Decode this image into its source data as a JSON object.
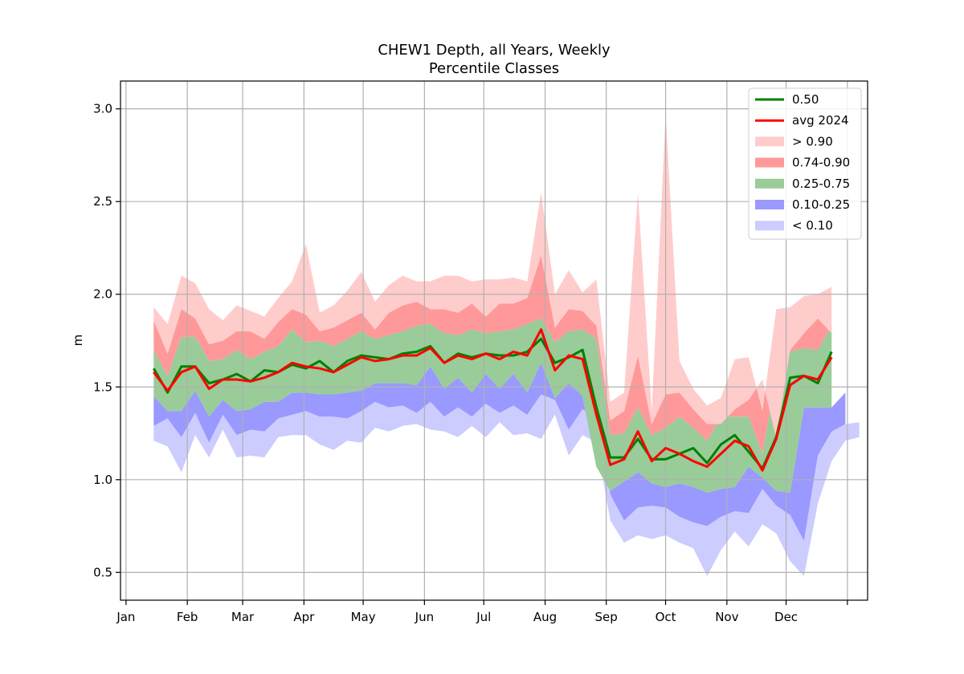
{
  "chart_data": {
    "type": "area",
    "title": "CHEW1 Depth, all Years, Weekly",
    "subtitle": "Percentile Classes",
    "xlabel": "",
    "ylabel": "m",
    "ylim": [
      0.35,
      3.15
    ],
    "yticks": [
      0.5,
      1.0,
      1.5,
      2.0,
      2.5,
      3.0
    ],
    "ytick_labels": [
      "0.5",
      "1.0",
      "1.5",
      "2.0",
      "2.5",
      "3.0"
    ],
    "xlim_weeks": [
      -1.4,
      52.6
    ],
    "xticks_week": [
      -1.0,
      3.43,
      7.43,
      11.86,
      16.14,
      20.57,
      24.86,
      29.29,
      33.71,
      38.0,
      42.43,
      46.71,
      51.14
    ],
    "xtick_labels": [
      "Jan",
      "Feb",
      "Mar",
      "Apr",
      "May",
      "Jun",
      "Jul",
      "Aug",
      "Sep",
      "Oct",
      "Nov",
      "Dec",
      ""
    ],
    "grid": true,
    "legend_position": "top-right",
    "legend": [
      {
        "label": "0.50",
        "kind": "line",
        "color": "#008000"
      },
      {
        "label": "avg 2024",
        "kind": "line",
        "color": "#ff0000"
      },
      {
        "label": "> 0.90",
        "kind": "patch",
        "color": "#ffcccc"
      },
      {
        "label": "0.74-0.90",
        "kind": "patch",
        "color": "#ff9999"
      },
      {
        "label": "0.25-0.75",
        "kind": "patch",
        "color": "#99cc99"
      },
      {
        "label": "0.10-0.25",
        "kind": "patch",
        "color": "#9999ff"
      },
      {
        "label": "< 0.10",
        "kind": "patch",
        "color": "#ccccff"
      }
    ],
    "x_week": [
      1,
      2,
      3,
      4,
      5,
      6,
      7,
      8,
      9,
      10,
      11,
      12,
      13,
      14,
      15,
      16,
      17,
      18,
      19,
      20,
      21,
      22,
      23,
      24,
      25,
      26,
      27,
      28,
      29,
      30,
      31,
      32,
      33,
      34,
      35,
      36,
      37,
      38,
      39,
      40,
      41,
      42,
      43,
      44,
      45,
      46,
      47,
      48,
      49,
      50,
      51,
      52
    ],
    "series": [
      {
        "name": "< 0.10",
        "color": "#ccccff",
        "kind": "band",
        "lower": [
          1.21,
          1.18,
          1.04,
          1.24,
          1.12,
          1.27,
          1.12,
          1.13,
          1.12,
          1.23,
          1.24,
          1.24,
          1.19,
          1.16,
          1.21,
          1.2,
          1.28,
          1.26,
          1.29,
          1.3,
          1.27,
          1.26,
          1.23,
          1.29,
          1.23,
          1.31,
          1.24,
          1.25,
          1.22,
          1.35,
          1.13,
          1.24,
          1.2,
          0.78,
          0.66,
          0.7,
          0.68,
          0.7,
          0.66,
          0.63,
          0.48,
          0.62,
          0.72,
          0.64,
          0.76,
          0.71,
          0.56,
          0.48,
          0.87,
          1.1,
          1.21,
          1.23
        ],
        "upper": [
          1.29,
          1.33,
          1.23,
          1.36,
          1.2,
          1.35,
          1.24,
          1.27,
          1.26,
          1.33,
          1.35,
          1.37,
          1.34,
          1.34,
          1.33,
          1.37,
          1.42,
          1.39,
          1.4,
          1.36,
          1.42,
          1.34,
          1.39,
          1.34,
          1.41,
          1.36,
          1.4,
          1.35,
          1.46,
          1.43,
          1.27,
          1.38,
          1.33,
          0.92,
          0.78,
          0.85,
          0.86,
          0.85,
          0.8,
          0.77,
          0.75,
          0.8,
          0.83,
          0.82,
          0.95,
          0.86,
          0.81,
          0.67,
          1.13,
          1.26,
          1.3,
          1.31
        ]
      },
      {
        "name": "0.10-0.25",
        "color": "#9999ff",
        "kind": "band",
        "lower": [
          1.29,
          1.33,
          1.23,
          1.36,
          1.2,
          1.35,
          1.24,
          1.27,
          1.26,
          1.33,
          1.35,
          1.37,
          1.34,
          1.34,
          1.33,
          1.37,
          1.42,
          1.39,
          1.4,
          1.36,
          1.42,
          1.34,
          1.39,
          1.34,
          1.41,
          1.36,
          1.4,
          1.35,
          1.46,
          1.43,
          1.27,
          1.38,
          1.33,
          0.92,
          0.78,
          0.85,
          0.86,
          0.85,
          0.8,
          0.77,
          0.75,
          0.8,
          0.83,
          0.82,
          0.95,
          0.86,
          0.81,
          0.67,
          1.13,
          1.26,
          1.3,
          1.31
        ],
        "upper": [
          1.45,
          1.37,
          1.37,
          1.48,
          1.34,
          1.43,
          1.37,
          1.38,
          1.42,
          1.42,
          1.47,
          1.47,
          1.46,
          1.46,
          1.47,
          1.48,
          1.52,
          1.52,
          1.52,
          1.51,
          1.61,
          1.49,
          1.55,
          1.47,
          1.57,
          1.49,
          1.57,
          1.47,
          1.63,
          1.44,
          1.52,
          1.45,
          1.07,
          0.94,
          0.99,
          1.04,
          0.98,
          0.96,
          0.98,
          0.96,
          0.93,
          0.95,
          0.96,
          1.07,
          1.01,
          0.94,
          0.93,
          1.39,
          1.39,
          1.39,
          1.47
        ]
      },
      {
        "name": "0.25-0.75",
        "color": "#99cc99",
        "kind": "band",
        "lower": [
          1.45,
          1.37,
          1.37,
          1.48,
          1.34,
          1.43,
          1.37,
          1.38,
          1.42,
          1.42,
          1.47,
          1.47,
          1.46,
          1.46,
          1.47,
          1.48,
          1.52,
          1.52,
          1.52,
          1.51,
          1.61,
          1.49,
          1.55,
          1.47,
          1.57,
          1.49,
          1.57,
          1.47,
          1.63,
          1.44,
          1.52,
          1.45,
          1.07,
          0.94,
          0.99,
          1.04,
          0.98,
          0.96,
          0.98,
          0.96,
          0.93,
          0.95,
          0.96,
          1.07,
          1.01,
          0.94,
          0.93,
          1.39,
          1.39,
          1.39,
          1.47,
          1.47
        ],
        "upper": [
          1.7,
          1.56,
          1.77,
          1.77,
          1.64,
          1.65,
          1.7,
          1.65,
          1.69,
          1.72,
          1.81,
          1.74,
          1.75,
          1.72,
          1.76,
          1.8,
          1.76,
          1.78,
          1.8,
          1.83,
          1.84,
          1.79,
          1.78,
          1.81,
          1.79,
          1.8,
          1.81,
          1.84,
          1.87,
          1.74,
          1.8,
          1.81,
          1.76,
          1.24,
          1.25,
          1.39,
          1.24,
          1.28,
          1.34,
          1.28,
          1.21,
          1.34,
          1.34,
          1.34,
          1.14,
          1.57,
          1.69,
          1.71,
          1.7,
          1.83
        ]
      },
      {
        "name": "0.74-0.90",
        "color": "#ff9999",
        "kind": "band",
        "lower": [
          1.7,
          1.56,
          1.77,
          1.77,
          1.64,
          1.65,
          1.7,
          1.65,
          1.69,
          1.72,
          1.81,
          1.74,
          1.75,
          1.72,
          1.76,
          1.8,
          1.76,
          1.78,
          1.8,
          1.83,
          1.84,
          1.79,
          1.78,
          1.81,
          1.79,
          1.8,
          1.81,
          1.84,
          1.87,
          1.74,
          1.8,
          1.81,
          1.76,
          1.24,
          1.25,
          1.39,
          1.24,
          1.28,
          1.34,
          1.28,
          1.21,
          1.34,
          1.34,
          1.34,
          1.14,
          1.57,
          1.69,
          1.71,
          1.7,
          1.83
        ],
        "upper": [
          1.86,
          1.68,
          1.92,
          1.87,
          1.73,
          1.75,
          1.8,
          1.8,
          1.76,
          1.85,
          1.92,
          1.89,
          1.8,
          1.82,
          1.86,
          1.9,
          1.81,
          1.9,
          1.94,
          1.96,
          1.92,
          1.92,
          1.9,
          1.95,
          1.88,
          1.95,
          1.95,
          1.98,
          2.21,
          1.82,
          1.92,
          1.91,
          1.83,
          1.32,
          1.37,
          1.67,
          1.3,
          1.46,
          1.47,
          1.38,
          1.3,
          1.3,
          1.38,
          1.43,
          1.54,
          1.22,
          1.7,
          1.79,
          1.87,
          1.79,
          1.95
        ]
      },
      {
        "name": "> 0.90",
        "color": "#ffcccc",
        "kind": "band",
        "lower": [
          1.86,
          1.68,
          1.92,
          1.87,
          1.73,
          1.75,
          1.8,
          1.8,
          1.76,
          1.85,
          1.92,
          1.89,
          1.8,
          1.82,
          1.86,
          1.9,
          1.81,
          1.9,
          1.94,
          1.96,
          1.92,
          1.92,
          1.9,
          1.95,
          1.88,
          1.95,
          1.95,
          1.98,
          2.21,
          1.82,
          1.92,
          1.91,
          1.83,
          1.32,
          1.37,
          1.67,
          1.3,
          1.46,
          1.47,
          1.38,
          1.3,
          1.3,
          1.38,
          1.43,
          1.54,
          1.22,
          1.7,
          1.79,
          1.87,
          1.79,
          1.95
        ],
        "upper": [
          1.93,
          1.84,
          2.1,
          2.06,
          1.92,
          1.86,
          1.94,
          1.91,
          1.88,
          1.98,
          2.07,
          2.27,
          1.9,
          1.94,
          2.02,
          2.12,
          1.96,
          2.05,
          2.1,
          2.07,
          2.07,
          2.1,
          2.1,
          2.07,
          2.08,
          2.08,
          2.09,
          2.07,
          2.55,
          2.0,
          2.13,
          2.01,
          2.08,
          1.42,
          1.47,
          2.55,
          1.37,
          2.97,
          1.64,
          1.49,
          1.4,
          1.44,
          1.65,
          1.66,
          1.37,
          1.92,
          1.93,
          1.99,
          2.0,
          2.04
        ]
      },
      {
        "name": "0.50",
        "color": "#008000",
        "kind": "line",
        "values": [
          1.6,
          1.47,
          1.61,
          1.61,
          1.52,
          1.54,
          1.57,
          1.53,
          1.59,
          1.58,
          1.62,
          1.6,
          1.64,
          1.58,
          1.64,
          1.67,
          1.66,
          1.65,
          1.68,
          1.69,
          1.72,
          1.63,
          1.68,
          1.66,
          1.68,
          1.67,
          1.67,
          1.69,
          1.76,
          1.63,
          1.66,
          1.7,
          1.39,
          1.12,
          1.12,
          1.22,
          1.11,
          1.11,
          1.14,
          1.17,
          1.09,
          1.19,
          1.24,
          1.15,
          1.06,
          1.23,
          1.55,
          1.56,
          1.52,
          1.69
        ]
      },
      {
        "name": "avg 2024",
        "color": "#ff0000",
        "kind": "line",
        "values": [
          1.58,
          1.48,
          1.58,
          1.61,
          1.49,
          1.54,
          1.54,
          1.53,
          1.55,
          1.58,
          1.63,
          1.61,
          1.6,
          1.58,
          1.62,
          1.66,
          1.64,
          1.65,
          1.67,
          1.67,
          1.71,
          1.63,
          1.67,
          1.65,
          1.68,
          1.65,
          1.69,
          1.67,
          1.81,
          1.59,
          1.67,
          1.65,
          1.35,
          1.08,
          1.11,
          1.26,
          1.1,
          1.17,
          1.14,
          1.1,
          1.07,
          1.14,
          1.21,
          1.18,
          1.05,
          1.22,
          1.51,
          1.56,
          1.54,
          1.66
        ]
      }
    ]
  }
}
